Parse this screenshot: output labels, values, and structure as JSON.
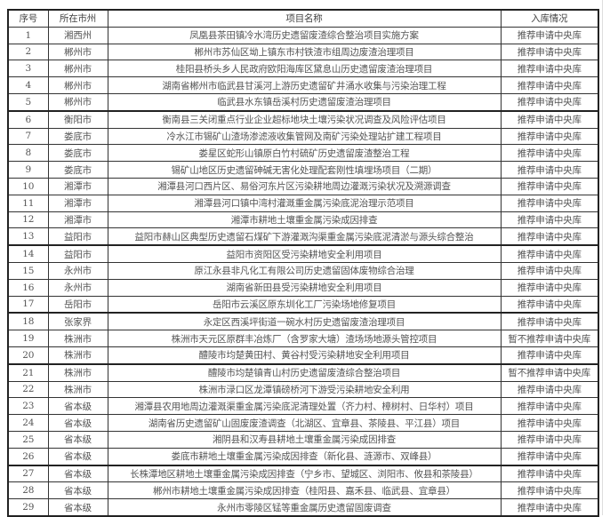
{
  "table": {
    "headers": [
      "序号",
      "所在市州",
      "项目名称",
      "入库情况"
    ],
    "rows": [
      [
        "1",
        "湘西州",
        "凤凰县茶田镇冷水湾历史遗留废渣综合整治项目实施方案",
        "推荐申请中央库"
      ],
      [
        "2",
        "郴州市",
        "郴州市苏仙区坳上镇东市村铁渣市组周边废渣治理项目",
        "推荐申请中央库"
      ],
      [
        "3",
        "郴州市",
        "桂阳县桥头乡人民政府欧阳海库区黛息山历史遗留废渣治理项目",
        "推荐申请中央库"
      ],
      [
        "4",
        "郴州市",
        "湖南省郴州市临武县甘溪河上游历史遗留矿井涌水收集与污染治理工程",
        "推荐申请中央库"
      ],
      [
        "5",
        "郴州市",
        "临武县水东镇岳溪村历史遗留废渣治理项目",
        "推荐申请中央库"
      ],
      [
        "6",
        "衡阳市",
        "衡南县三关闭重点行业企业超标地块土壤污染状况调查及风险评估项目",
        "推荐申请中央库"
      ],
      [
        "7",
        "娄底市",
        "冷水江市锡矿山渣场渗滤液收集管网及南矿污染处理站扩建工程项目",
        "推荐申请中央库"
      ],
      [
        "8",
        "娄底市",
        "娄星区蛇形山镇原白竹村硫矿历史遗留废渣整治工程",
        "推荐申请中央库"
      ],
      [
        "9",
        "娄底市",
        "锡矿山地区历史遗留砷碱无害化处理配套刚性填埋场项目（二期）",
        "推荐申请中央库"
      ],
      [
        "10",
        "湘潭市",
        "湘潭县河口西片区、易俗河东片区污染耕地周边灌溉污染状况及溯源调查",
        "推荐申请中央库"
      ],
      [
        "11",
        "湘潭市",
        "湘潭县河口镇中湾村灌溉重金属污染底泥治理示范项目",
        "推荐申请中央库"
      ],
      [
        "12",
        "湘潭市",
        "湘潭市耕地土壤重金属污染成因排查",
        "推荐申请中央库"
      ],
      [
        "13",
        "益阳市",
        "益阳市赫山区典型历史遗留石煤矿下游灌溉沟渠重金属污染底泥清淤与源头综合整治",
        "推荐申请中央库"
      ],
      [
        "14",
        "益阳市",
        "益阳市资阳区受污染耕地安全利用项目",
        "推荐申请中央库"
      ],
      [
        "15",
        "永州市",
        "原江永县非凡化工有限公司历史遗留固体废物综合治理",
        "推荐申请中央库"
      ],
      [
        "16",
        "永州市",
        "湖南省新田县受污染耕地安全利用项目",
        "推荐申请中央库"
      ],
      [
        "17",
        "岳阳市",
        "岳阳市云溪区原东圳化工厂污染场地修复项目",
        "推荐申请中央库"
      ],
      [
        "18",
        "张家界",
        "永定区西溪坪街道一碗水村历史遗留废渣治理项目",
        "推荐申请中央库"
      ],
      [
        "19",
        "株洲市",
        "株洲市天元区原群丰冶炼厂（含罗家大塘）渣场场地源头管控项目",
        "暂不推荐申请中央库"
      ],
      [
        "20",
        "株洲市",
        "醴陵市均楚黄田村、黄谷村受污染耕地安全利用项目",
        "推荐申请中央库"
      ],
      [
        "21",
        "株洲市",
        "醴陵市均楚镇青山村历史遗留废渣综合整治项目",
        "暂不推荐申请中央库"
      ],
      [
        "22",
        "株洲市",
        "株洲市渌口区龙潭镇磅桥河下游受污染耕地安全利用",
        "推荐申请中央库"
      ],
      [
        "23",
        "省本级",
        "湘潭县农用地周边灌溉渠重金属污染底泥清理处置（齐力村、樟树村、日华村）项目",
        "推荐申请中央库"
      ],
      [
        "24",
        "省本级",
        "湖南省历史遗留矿山固废废渣调查（北湖区、宜章县、茶陵县、平江县）项目",
        "推荐申请中央库"
      ],
      [
        "25",
        "省本级",
        "湘阴县和汉寿县耕地土壤重金属污染成因排查",
        "推荐申请中央库"
      ],
      [
        "26",
        "省本级",
        "娄底市耕地土壤重金属污染成因排查（新化县、涟源市、双峰县）",
        "推荐申请中央库"
      ],
      [
        "27",
        "省本级",
        "长株潭地区耕地土壤重金属污染成因排查（宁乡市、望城区、浏阳市、攸县和茶陵县）",
        "推荐申请中央库"
      ],
      [
        "28",
        "省本级",
        "郴州市耕地土壤重金属污染成因排查（桂阳县、嘉禾县、临武县、宜章县）",
        "推荐申请中央库"
      ],
      [
        "29",
        "省本级",
        "永州市零陵区锰等重金属历史遗留固废调查",
        "推荐申请中央库"
      ]
    ]
  }
}
